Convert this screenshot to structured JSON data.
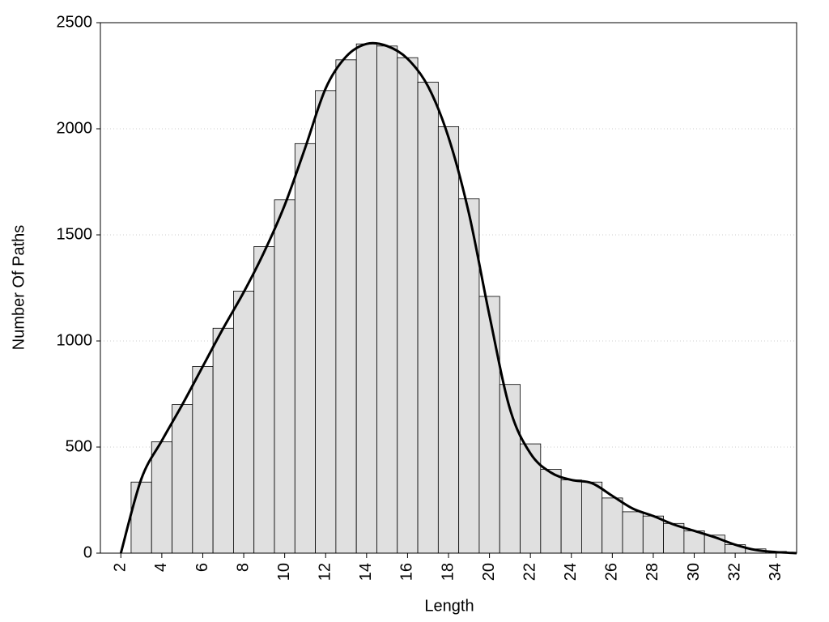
{
  "chart_data": {
    "type": "histogram",
    "x_label": "Length",
    "y_label": "Number Of Paths",
    "bins": [
      2.5,
      3.5,
      4.5,
      5.5,
      6.5,
      7.5,
      8.5,
      9.5,
      10.5,
      11.5,
      12.5,
      13.5,
      14.5,
      15.5,
      16.5,
      17.5,
      18.5,
      19.5,
      20.5,
      21.5,
      22.5,
      23.5,
      24.5,
      25.5,
      26.5,
      27.5,
      28.5,
      29.5,
      30.5,
      31.5,
      32.5,
      33.5,
      34.5
    ],
    "values": [
      335,
      525,
      700,
      880,
      1060,
      1235,
      1445,
      1665,
      1930,
      2180,
      2325,
      2400,
      2390,
      2335,
      2220,
      2010,
      1670,
      1210,
      795,
      515,
      395,
      345,
      335,
      260,
      195,
      175,
      140,
      105,
      85,
      40,
      20,
      8
    ],
    "color": "#e0e0e0",
    "curve": {
      "color": "#000000",
      "x": [
        2,
        3,
        4,
        5,
        6,
        7,
        8,
        9,
        10,
        11,
        12,
        13,
        14,
        15,
        16,
        17,
        18,
        19,
        20,
        21,
        22,
        23,
        24,
        25,
        26,
        27,
        28,
        29,
        30,
        31,
        32,
        33,
        34,
        35
      ],
      "values": [
        0,
        350,
        530,
        700,
        880,
        1060,
        1230,
        1420,
        1640,
        1910,
        2190,
        2340,
        2400,
        2390,
        2330,
        2200,
        1960,
        1600,
        1120,
        680,
        470,
        380,
        345,
        330,
        270,
        210,
        175,
        135,
        105,
        75,
        40,
        15,
        5,
        0
      ]
    },
    "xlim": [
      1,
      35
    ],
    "xticks": [
      2,
      4,
      6,
      8,
      10,
      12,
      14,
      16,
      18,
      20,
      22,
      24,
      26,
      28,
      30,
      32,
      34
    ],
    "ylim": [
      0,
      2500
    ],
    "yticks": [
      0,
      500,
      1000,
      1500,
      2000,
      2500
    ],
    "grid": true
  }
}
